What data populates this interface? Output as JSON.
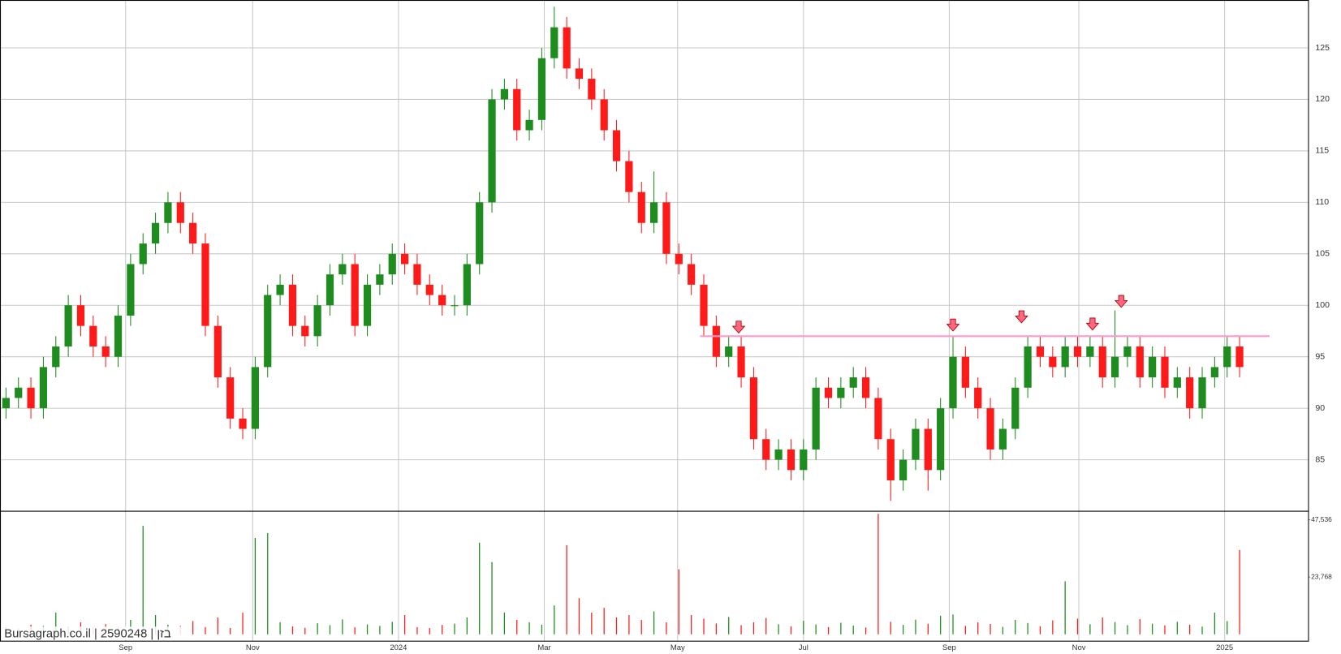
{
  "chart_data": {
    "type": "candlestick",
    "watermark": "Bursagraph.co.il | 2590248 | בזן",
    "xlim": [
      -0.48,
      104.53
    ],
    "xticks": [
      {
        "value": 9.6,
        "label": "Sep"
      },
      {
        "value": 19.8,
        "label": "Nov"
      },
      {
        "value": 31.5,
        "label": "2024"
      },
      {
        "value": 43.2,
        "label": "Mar"
      },
      {
        "value": 53.9,
        "label": "May"
      },
      {
        "value": 64.0,
        "label": "Jul"
      },
      {
        "value": 75.7,
        "label": "Sep"
      },
      {
        "value": 86.1,
        "label": "Nov"
      },
      {
        "value": 97.8,
        "label": "2025"
      }
    ],
    "ylim": [
      80,
      129.65
    ],
    "yticks": [
      85,
      90,
      95,
      100,
      105,
      110,
      115,
      120,
      125
    ],
    "grid": true,
    "up_color": "#1e8c1e",
    "down_color": "#ff1a1a",
    "open": [
      90,
      91,
      92,
      90,
      94,
      96,
      100,
      98,
      96,
      95,
      99,
      104,
      106,
      108,
      110,
      108,
      106,
      98,
      93,
      89,
      88,
      94,
      101,
      102,
      98,
      97,
      100,
      103,
      104,
      98,
      102,
      103,
      105,
      104,
      102,
      101,
      100,
      100,
      104,
      110,
      120,
      121,
      117,
      118,
      124,
      127,
      123,
      122,
      120,
      117,
      114,
      111,
      108,
      110,
      105,
      104,
      102,
      98,
      95,
      96,
      93,
      87,
      85,
      86,
      84,
      86,
      92,
      91,
      92,
      93,
      91,
      87,
      83,
      85,
      88,
      84,
      90,
      95,
      92,
      90,
      86,
      88,
      92,
      96,
      95,
      94,
      96,
      95,
      96,
      93,
      95,
      96,
      93,
      95,
      92,
      93,
      90,
      93,
      94,
      96
    ],
    "high": [
      92,
      93,
      93,
      95,
      97,
      101,
      101,
      99,
      97,
      100,
      105,
      107,
      109,
      111,
      111,
      109,
      107,
      99,
      94,
      90,
      95,
      102,
      103,
      103,
      99,
      101,
      104,
      105,
      105,
      103,
      104,
      106,
      106,
      105,
      103,
      102,
      101,
      105,
      111,
      121,
      122,
      122,
      119,
      125,
      129,
      128,
      124,
      123,
      121,
      118,
      115,
      112,
      113,
      111,
      106,
      105,
      103,
      99,
      97,
      97,
      94,
      88,
      87,
      87,
      87,
      93,
      93,
      93,
      94,
      94,
      92,
      88,
      86,
      89,
      89,
      91,
      97,
      96,
      93,
      91,
      89,
      93,
      97,
      97,
      96,
      97,
      97,
      97,
      97,
      99.5,
      97,
      97,
      96,
      96,
      94,
      94,
      94,
      95,
      97,
      97
    ],
    "low": [
      89,
      90,
      89,
      89,
      93,
      95,
      97,
      95,
      94,
      94,
      98,
      103,
      105,
      107,
      107,
      105,
      97,
      92,
      88,
      87,
      87,
      93,
      100,
      97,
      96,
      96,
      99,
      102,
      97,
      97,
      101,
      102,
      103,
      101,
      100,
      99,
      99,
      99,
      103,
      109,
      119,
      116,
      116,
      117,
      123,
      122,
      121,
      119,
      116,
      113,
      110,
      107,
      107,
      104,
      103,
      101,
      97,
      94,
      94,
      92,
      86,
      84,
      84,
      83,
      83,
      85,
      90,
      90,
      91,
      90,
      86,
      81,
      82,
      84,
      82,
      83,
      89,
      91,
      89,
      85,
      85,
      87,
      91,
      94,
      93,
      93,
      94,
      94,
      92,
      92,
      94,
      92,
      92,
      91,
      91,
      89,
      89,
      92,
      93,
      93
    ],
    "close": [
      91,
      92,
      90,
      94,
      96,
      100,
      98,
      96,
      95,
      99,
      104,
      106,
      108,
      110,
      108,
      106,
      98,
      93,
      89,
      88,
      94,
      101,
      102,
      98,
      97,
      100,
      103,
      104,
      98,
      102,
      103,
      105,
      104,
      102,
      101,
      100,
      100,
      104,
      110,
      120,
      121,
      117,
      118,
      124,
      127,
      123,
      122,
      120,
      117,
      114,
      111,
      108,
      110,
      105,
      104,
      102,
      98,
      95,
      96,
      93,
      87,
      85,
      86,
      84,
      86,
      92,
      91,
      92,
      93,
      91,
      87,
      83,
      85,
      88,
      84,
      90,
      95,
      92,
      90,
      86,
      88,
      92,
      96,
      95,
      94,
      96,
      95,
      96,
      93,
      95,
      96,
      93,
      95,
      92,
      93,
      90,
      93,
      94,
      96,
      94
    ],
    "volume": {
      "ylim": [
        0,
        51083
      ],
      "yticks": [
        {
          "value": 23768,
          "label": "23,768"
        },
        {
          "value": 47536,
          "label": "47,536"
        }
      ],
      "values": [
        3000,
        2500,
        4000,
        3500,
        9000,
        3200,
        5000,
        2800,
        4200,
        3000,
        6000,
        45000,
        8000,
        4000,
        3500,
        5500,
        3000,
        7000,
        2600,
        9000,
        40000,
        42000,
        5000,
        3300,
        2700,
        4600,
        3800,
        6200,
        2900,
        4100,
        3500,
        5200,
        8000,
        3000,
        2600,
        3900,
        4400,
        7000,
        38000,
        30000,
        9000,
        6000,
        5000,
        4000,
        12000,
        37000,
        15000,
        9000,
        11000,
        7000,
        8000,
        6000,
        9500,
        5000,
        27000,
        8000,
        6500,
        4500,
        7200,
        3800,
        5000,
        6800,
        4200,
        3300,
        5600,
        4100,
        3000,
        4800,
        3600,
        2800,
        50000,
        5200,
        3900,
        6100,
        4400,
        7700,
        8200,
        3500,
        5000,
        4300,
        3100,
        6000,
        4700,
        3400,
        5800,
        22000,
        6500,
        4200,
        7000,
        5100,
        3800,
        6300,
        4400,
        3700,
        5200,
        4000,
        3200,
        9000,
        5500,
        35000
      ]
    },
    "resistance": {
      "value": 97,
      "color": "#ff99cc",
      "x_range": [
        55.7,
        101.4
      ]
    },
    "markers": {
      "color": "#ff6680",
      "x": [
        58.8,
        76.0,
        81.5,
        87.2,
        89.5
      ],
      "y": [
        97.3,
        97.5,
        98.3,
        97.6,
        99.8
      ]
    }
  }
}
